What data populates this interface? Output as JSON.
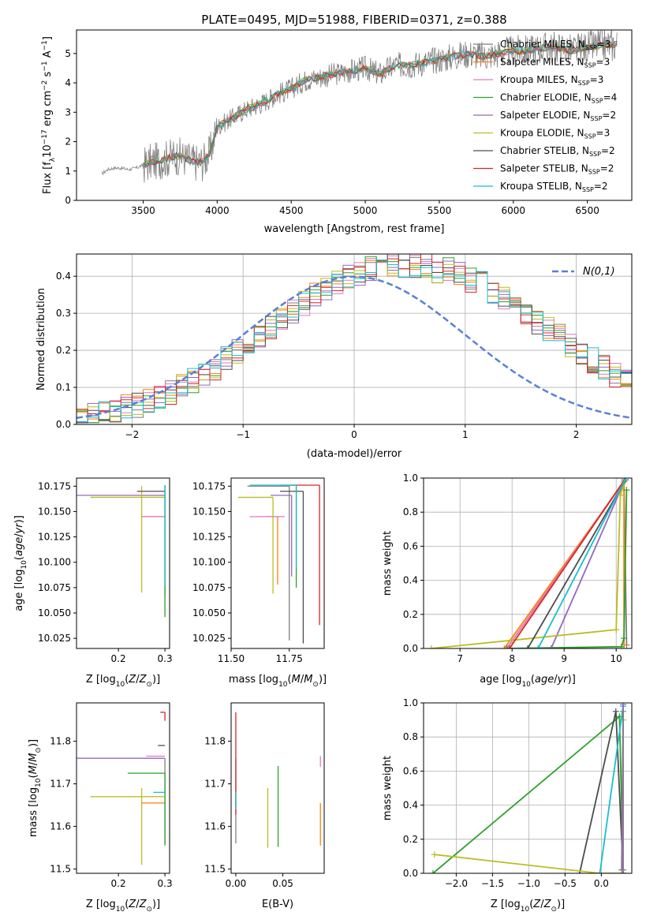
{
  "title": "PLATE=0495, MJD=51988, FIBERID=0371, z=0.388",
  "model_colors": [
    "#7f7f7f",
    "#ff7f0e",
    "#e377c2",
    "#2ca02c",
    "#9467bd",
    "#bcbd22",
    "#4d4d4d",
    "#d62728",
    "#17becf"
  ],
  "chart_data": [
    {
      "id": "spectrum",
      "type": "line",
      "xlabel": "wavelength [Angstrom, rest frame]",
      "ylabel": "Flux [f_λ 10^-17 erg cm^-2 s^-1 A^-1]",
      "xlim": [
        3050,
        6800
      ],
      "ylim": [
        0,
        5.8
      ],
      "xticks": [
        3500,
        4000,
        4500,
        5000,
        5500,
        6000,
        6500
      ],
      "yticks": [
        0,
        1,
        2,
        3,
        4,
        5
      ],
      "legend_position": "right",
      "observed": {
        "x": [
          3220,
          3260,
          3300,
          3350,
          3400,
          3450,
          3500,
          3550,
          3600,
          3650,
          3700,
          3750,
          3800,
          3850,
          3900,
          3950,
          4000,
          4100,
          4200,
          4300,
          4400,
          4500,
          4600,
          4700,
          4800,
          4900,
          5000,
          5100,
          5200,
          5300,
          5400,
          5500,
          5600,
          5700,
          5800,
          5900,
          6000,
          6100,
          6200,
          6300,
          6400,
          6500,
          6600,
          6700
        ],
        "y": [
          0.9,
          1.05,
          1.1,
          1.1,
          1.05,
          1.1,
          1.2,
          1.3,
          1.35,
          1.4,
          1.5,
          1.5,
          1.4,
          1.3,
          1.3,
          1.6,
          2.5,
          2.8,
          3.1,
          3.3,
          3.6,
          3.8,
          4.1,
          4.2,
          4.3,
          4.4,
          4.5,
          4.3,
          4.6,
          4.6,
          4.7,
          4.8,
          4.9,
          5.0,
          4.9,
          5.0,
          5.1,
          5.1,
          5.2,
          5.2,
          5.1,
          5.2,
          5.3,
          5.3
        ],
        "noise_amplitude": 0.55
      },
      "series": [
        {
          "name": "Chabrier MILES, N_SSP=3",
          "label_main": "Chabrier MILES, N",
          "label_sub": "SSP",
          "label_tail": "=3",
          "color": "#7f7f7f"
        },
        {
          "name": "Salpeter MILES, N_SSP=3",
          "label_main": "Salpeter MILES, N",
          "label_sub": "SSP",
          "label_tail": "=3",
          "color": "#ff7f0e"
        },
        {
          "name": "Kroupa MILES, N_SSP=3",
          "label_main": "Kroupa MILES, N",
          "label_sub": "SSP",
          "label_tail": "=3",
          "color": "#e377c2"
        },
        {
          "name": "Chabrier ELODIE, N_SSP=4",
          "label_main": "Chabrier ELODIE, N",
          "label_sub": "SSP",
          "label_tail": "=4",
          "color": "#2ca02c"
        },
        {
          "name": "Salpeter ELODIE, N_SSP=2",
          "label_main": "Salpeter ELODIE, N",
          "label_sub": "SSP",
          "label_tail": "=2",
          "color": "#9467bd"
        },
        {
          "name": "Kroupa ELODIE, N_SSP=3",
          "label_main": "Kroupa ELODIE, N",
          "label_sub": "SSP",
          "label_tail": "=3",
          "color": "#bcbd22"
        },
        {
          "name": "Chabrier STELIB, N_SSP=2",
          "label_main": "Chabrier STELIB, N",
          "label_sub": "SSP",
          "label_tail": "=2",
          "color": "#4d4d4d"
        },
        {
          "name": "Salpeter STELIB, N_SSP=2",
          "label_main": "Salpeter STELIB, N",
          "label_sub": "SSP",
          "label_tail": "=2",
          "color": "#d62728"
        },
        {
          "name": "Kroupa STELIB, N_SSP=2",
          "label_main": "Kroupa STELIB, N",
          "label_sub": "SSP",
          "label_tail": "=2",
          "color": "#17becf"
        }
      ]
    },
    {
      "id": "residuals",
      "type": "histogram",
      "xlabel": "(data-model)/error",
      "ylabel": "Normed distribution",
      "xlim": [
        -2.5,
        2.5
      ],
      "ylim": [
        0,
        0.46
      ],
      "xticks": [
        -2,
        -1,
        0,
        1,
        2
      ],
      "yticks": [
        0.0,
        0.1,
        0.2,
        0.3,
        0.4
      ],
      "grid": true,
      "legend_position": "top-right",
      "gaussian": {
        "name": "N(0,1)",
        "color": "#5b7fd6"
      },
      "bin_start": -2.5,
      "bin_width": 0.1,
      "envelope": [
        0.02,
        0.025,
        0.03,
        0.04,
        0.045,
        0.05,
        0.06,
        0.07,
        0.085,
        0.1,
        0.115,
        0.13,
        0.15,
        0.17,
        0.19,
        0.21,
        0.23,
        0.25,
        0.27,
        0.29,
        0.31,
        0.33,
        0.345,
        0.36,
        0.37,
        0.38,
        0.39,
        0.39,
        0.4,
        0.4,
        0.4,
        0.4,
        0.39,
        0.39,
        0.38,
        0.37,
        0.36,
        0.345,
        0.33,
        0.31,
        0.29,
        0.27,
        0.25,
        0.23,
        0.21,
        0.19,
        0.17,
        0.15,
        0.13,
        0.115
      ]
    },
    {
      "id": "age_vs_Z",
      "type": "errorbar",
      "xlabel": "Z [log10(Z/Z☉)]",
      "ylabel": "age [log10(age/yr)]",
      "xlim": [
        0.11,
        0.31
      ],
      "ylim": [
        10.015,
        10.183
      ],
      "xticks": [
        0.2,
        0.3
      ],
      "yticks": [
        10.025,
        10.05,
        10.075,
        10.1,
        10.125,
        10.15,
        10.175
      ],
      "points": [
        {
          "series": 0,
          "x": 0.3,
          "y": 10.176,
          "xerr": [
            0.0,
            0.0
          ],
          "yerr": [
            0.11,
            0.0
          ]
        },
        {
          "series": 1,
          "x": 0.3,
          "y": 10.145,
          "xerr": [
            0.05,
            0.0
          ],
          "yerr": [
            0.0,
            0.0
          ]
        },
        {
          "series": 2,
          "x": 0.3,
          "y": 10.145,
          "xerr": [
            0.05,
            0.0
          ],
          "yerr": [
            0.0,
            0.0
          ]
        },
        {
          "series": 3,
          "x": 0.3,
          "y": 10.176,
          "xerr": [
            0.0,
            0.0
          ],
          "yerr": [
            0.13,
            0.0
          ]
        },
        {
          "series": 4,
          "x": 0.3,
          "y": 10.166,
          "xerr": [
            0.19,
            0.0
          ],
          "yerr": [
            0.0,
            0.0
          ]
        },
        {
          "series": 5,
          "x": 0.3,
          "y": 10.164,
          "xerr": [
            0.16,
            0.0
          ],
          "yerr": [
            0.0,
            0.0
          ]
        },
        {
          "series": 5,
          "x": 0.25,
          "y": 10.175,
          "xerr": [
            0.0,
            0.0
          ],
          "yerr": [
            0.105,
            0.0
          ]
        },
        {
          "series": 6,
          "x": 0.3,
          "y": 10.17,
          "xerr": [
            0.06,
            0.0
          ],
          "yerr": [
            0.0,
            0.0
          ]
        },
        {
          "series": 8,
          "x": 0.3,
          "y": 10.176,
          "xerr": [
            0.0,
            0.0
          ],
          "yerr": [
            0.1,
            0.0
          ]
        }
      ]
    },
    {
      "id": "age_vs_mass",
      "type": "errorbar",
      "xlabel": "mass [log10(M/M☉)]",
      "ylabel": "",
      "xlim": [
        11.5,
        11.9
      ],
      "ylim": [
        10.015,
        10.183
      ],
      "xticks": [
        11.5,
        11.75
      ],
      "yticks": [
        10.025,
        10.05,
        10.075,
        10.1,
        10.125,
        10.15,
        10.175
      ],
      "points": [
        {
          "series": 0,
          "x": 11.75,
          "y": 10.175,
          "xerr": [
            0.18,
            0.0
          ],
          "yerr": [
            0.152,
            0.0
          ]
        },
        {
          "series": 1,
          "x": 11.7,
          "y": 10.145,
          "xerr": [
            0.05,
            0.0
          ],
          "yerr": [
            0.067,
            0.0
          ]
        },
        {
          "series": 2,
          "x": 11.73,
          "y": 10.145,
          "xerr": [
            0.15,
            0.0
          ],
          "yerr": [
            0.0,
            0.0
          ]
        },
        {
          "series": 3,
          "x": 11.78,
          "y": 10.176,
          "xerr": [
            0.07,
            0.0
          ],
          "yerr": [
            0.101,
            0.0
          ]
        },
        {
          "series": 4,
          "x": 11.76,
          "y": 10.166,
          "xerr": [
            0.09,
            0.0
          ],
          "yerr": [
            0.08,
            0.0
          ]
        },
        {
          "series": 5,
          "x": 11.68,
          "y": 10.164,
          "xerr": [
            0.15,
            0.0
          ],
          "yerr": [
            0.095,
            0.0
          ]
        },
        {
          "series": 6,
          "x": 11.81,
          "y": 10.17,
          "xerr": [
            0.1,
            0.0
          ],
          "yerr": [
            0.15,
            0.0
          ]
        },
        {
          "series": 7,
          "x": 11.88,
          "y": 10.176,
          "xerr": [
            0.13,
            0.0
          ],
          "yerr": [
            0.138,
            0.0
          ]
        },
        {
          "series": 8,
          "x": 11.78,
          "y": 10.176,
          "xerr": [
            0.2,
            0.0
          ],
          "yerr": [
            0.082,
            0.0
          ]
        }
      ]
    },
    {
      "id": "massweight_vs_age",
      "type": "line",
      "xlabel": "age [log10(age/yr)]",
      "ylabel": "mass weight",
      "xlim": [
        6.3,
        10.3
      ],
      "ylim": [
        0,
        1
      ],
      "xticks": [
        7,
        8,
        9,
        10
      ],
      "yticks": [
        0.0,
        0.2,
        0.4,
        0.6,
        0.8,
        1.0
      ],
      "grid": true,
      "lines": [
        {
          "series": 0,
          "x": [
            7.9,
            10.15,
            10.2
          ],
          "y": [
            0.0,
            0.98,
            0.02
          ]
        },
        {
          "series": 1,
          "x": [
            7.85,
            10.15,
            10.15
          ],
          "y": [
            0.0,
            0.98,
            0.02
          ]
        },
        {
          "series": 2,
          "x": [
            7.9,
            10.15
          ],
          "y": [
            0.0,
            0.98
          ]
        },
        {
          "series": 3,
          "x": [
            7.9,
            10.1,
            10.15,
            10.2
          ],
          "y": [
            0.0,
            0.01,
            0.06,
            0.93
          ]
        },
        {
          "series": 4,
          "x": [
            8.75,
            10.17
          ],
          "y": [
            0.0,
            0.99
          ]
        },
        {
          "series": 5,
          "x": [
            6.45,
            10.0,
            10.08,
            10.17
          ],
          "y": [
            0.0,
            0.11,
            0.9,
            0.98
          ]
        },
        {
          "series": 6,
          "x": [
            8.3,
            10.18
          ],
          "y": [
            0.0,
            0.99
          ]
        },
        {
          "series": 7,
          "x": [
            7.95,
            10.16
          ],
          "y": [
            0.0,
            0.99
          ]
        },
        {
          "series": 8,
          "x": [
            8.5,
            10.17
          ],
          "y": [
            0.0,
            0.99
          ]
        }
      ]
    },
    {
      "id": "mass_vs_Z",
      "type": "errorbar",
      "xlabel": "Z [log10(Z/Z☉)]",
      "ylabel": "mass [log10(M/M☉)]",
      "xlim": [
        0.11,
        0.31
      ],
      "ylim": [
        11.49,
        11.89
      ],
      "xticks": [
        0.2,
        0.3
      ],
      "yticks": [
        11.5,
        11.6,
        11.7,
        11.8
      ],
      "points": [
        {
          "series": 0,
          "x": 0.3,
          "y": 11.76,
          "xerr": [
            0.0,
            0.0
          ],
          "yerr": [
            0.2,
            0.0
          ]
        },
        {
          "series": 1,
          "x": 0.3,
          "y": 11.655,
          "xerr": [
            0.05,
            0.0
          ],
          "yerr": [
            0.0,
            0.0
          ]
        },
        {
          "series": 2,
          "x": 0.3,
          "y": 11.765,
          "xerr": [
            0.04,
            0.0
          ],
          "yerr": [
            0.0,
            0.0
          ]
        },
        {
          "series": 3,
          "x": 0.3,
          "y": 11.725,
          "xerr": [
            0.08,
            0.0
          ],
          "yerr": [
            0.17,
            0.0
          ]
        },
        {
          "series": 4,
          "x": 0.3,
          "y": 11.76,
          "xerr": [
            0.19,
            0.0
          ],
          "yerr": [
            0.0,
            0.0
          ]
        },
        {
          "series": 5,
          "x": 0.3,
          "y": 11.67,
          "xerr": [
            0.16,
            0.0
          ],
          "yerr": [
            0.0,
            0.0
          ]
        },
        {
          "series": 5,
          "x": 0.25,
          "y": 11.69,
          "xerr": [
            0.0,
            0.0
          ],
          "yerr": [
            0.18,
            0.0
          ]
        },
        {
          "series": 6,
          "x": 0.3,
          "y": 11.79,
          "xerr": [
            0.015,
            0.0
          ],
          "yerr": [
            0.0,
            0.0
          ]
        },
        {
          "series": 7,
          "x": 0.3,
          "y": 11.868,
          "xerr": [
            0.01,
            0.0
          ],
          "yerr": [
            0.02,
            0.0
          ]
        },
        {
          "series": 8,
          "x": 0.3,
          "y": 11.68,
          "xerr": [
            0.025,
            0.0
          ],
          "yerr": [
            0.0,
            0.0
          ]
        }
      ]
    },
    {
      "id": "mass_vs_ebv",
      "type": "errorbar",
      "xlabel": "E(B-V)",
      "ylabel": "",
      "xlim": [
        -0.005,
        0.094
      ],
      "ylim": [
        11.49,
        11.89
      ],
      "xticks": [
        0.0,
        0.05
      ],
      "yticks": [
        11.5,
        11.6,
        11.7,
        11.8
      ],
      "points": [
        {
          "series": 0,
          "x": 0.0,
          "y": 11.76,
          "xerr": [
            0.0,
            0.0
          ],
          "yerr": [
            0.2,
            0.0
          ]
        },
        {
          "series": 1,
          "x": 0.09,
          "y": 11.655,
          "xerr": [
            0.0,
            0.0
          ],
          "yerr": [
            0.1,
            0.0
          ]
        },
        {
          "series": 2,
          "x": 0.09,
          "y": 11.765,
          "xerr": [
            0.0,
            0.0
          ],
          "yerr": [
            0.025,
            0.0
          ]
        },
        {
          "series": 3,
          "x": 0.045,
          "y": 11.742,
          "xerr": [
            0.0,
            0.0
          ],
          "yerr": [
            0.19,
            0.0
          ]
        },
        {
          "series": 5,
          "x": 0.034,
          "y": 11.69,
          "xerr": [
            0.0,
            0.0
          ],
          "yerr": [
            0.14,
            0.0
          ]
        },
        {
          "series": 7,
          "x": 0.0,
          "y": 11.868,
          "xerr": [
            0.0,
            0.0
          ],
          "yerr": [
            0.24,
            0.0
          ]
        },
        {
          "series": 8,
          "x": 0.0,
          "y": 11.68,
          "xerr": [
            0.0,
            0.0
          ],
          "yerr": [
            0.04,
            0.0
          ]
        }
      ]
    },
    {
      "id": "massweight_vs_Z",
      "type": "line",
      "xlabel": "Z [log10(Z/Z☉)]",
      "ylabel": "mass weight",
      "xlim": [
        -2.45,
        0.42
      ],
      "ylim": [
        0,
        1
      ],
      "xticks": [
        -2.0,
        -1.5,
        -1.0,
        -0.5,
        0.0
      ],
      "yticks": [
        0.0,
        0.2,
        0.4,
        0.6,
        0.8,
        1.0
      ],
      "grid": true,
      "lines": [
        {
          "series": 3,
          "x": [
            -2.32,
            0.25,
            0.3
          ],
          "y": [
            0.0,
            0.92,
            0.02
          ]
        },
        {
          "series": 6,
          "x": [
            -0.3,
            0.2,
            0.3
          ],
          "y": [
            0.0,
            0.95,
            0.0
          ]
        },
        {
          "series": 5,
          "x": [
            -2.3,
            -0.02,
            0.3,
            0.3
          ],
          "y": [
            0.11,
            0.0,
            0.0,
            0.9
          ]
        },
        {
          "series": 8,
          "x": [
            -0.02,
            0.3
          ],
          "y": [
            0.0,
            0.98
          ]
        },
        {
          "series": 4,
          "x": [
            0.3,
            0.3
          ],
          "y": [
            0.0,
            0.99
          ]
        },
        {
          "series": 0,
          "x": [
            0.28,
            0.3
          ],
          "y": [
            0.02,
            0.95
          ]
        }
      ]
    }
  ]
}
